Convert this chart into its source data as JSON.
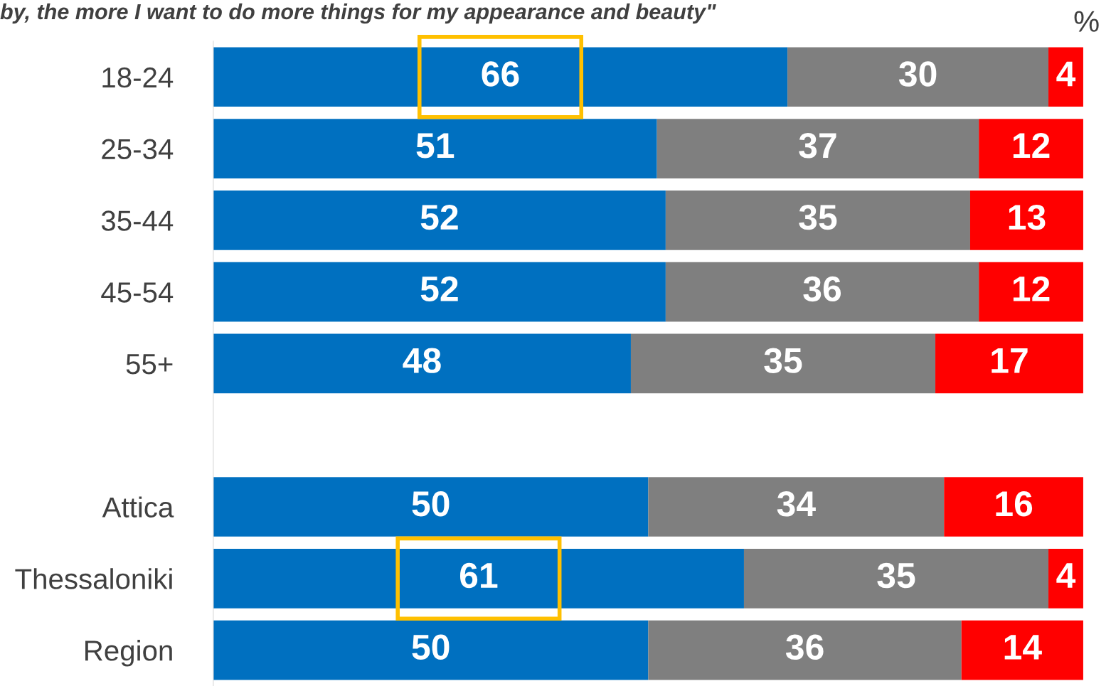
{
  "chart_data": {
    "type": "bar",
    "orientation": "horizontal",
    "stacked": true,
    "data_labels": true,
    "title": "by, the more I want to do more things for my appearance and beauty\"",
    "categories": [
      "18-24",
      "25-34",
      "35-44",
      "45-54",
      "55+",
      null,
      "Attica",
      "Thessaloniki",
      "Region"
    ],
    "series": [
      {
        "color": "#0070c0",
        "values": [
          66,
          51,
          52,
          52,
          48,
          null,
          50,
          61,
          50
        ]
      },
      {
        "color": "#7f7f7f",
        "values": [
          30,
          37,
          35,
          36,
          35,
          null,
          34,
          35,
          36
        ]
      },
      {
        "color": "#ff0000",
        "values": [
          4,
          12,
          13,
          12,
          17,
          null,
          16,
          4,
          14
        ]
      }
    ],
    "annotations": [
      "%"
    ],
    "legend": false,
    "grid": false
  }
}
